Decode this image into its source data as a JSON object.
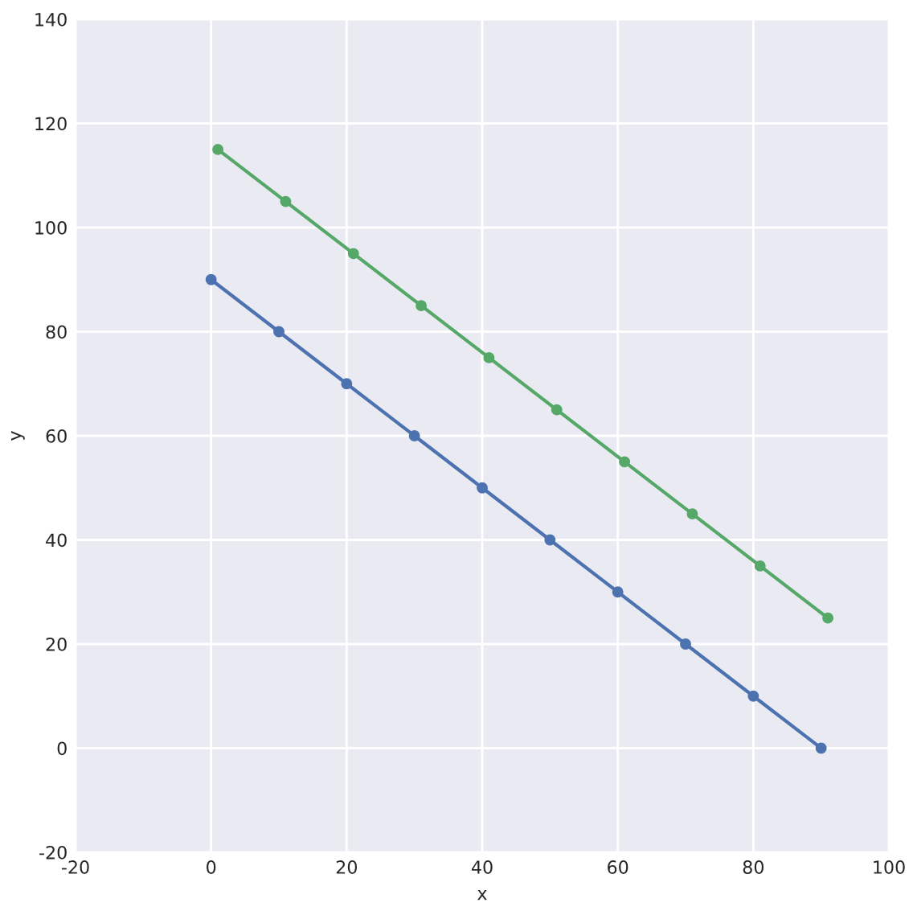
{
  "chart_data": {
    "type": "line",
    "xlabel": "x",
    "ylabel": "y",
    "series": [
      {
        "color": "#4c72b0",
        "x": [
          0,
          10,
          20,
          30,
          40,
          50,
          60,
          70,
          80,
          90
        ],
        "values": [
          90,
          80,
          70,
          60,
          50,
          40,
          30,
          20,
          10,
          0
        ]
      },
      {
        "color": "#55a868",
        "x": [
          1,
          11,
          21,
          31,
          41,
          51,
          61,
          71,
          81,
          91
        ],
        "values": [
          115,
          105,
          95,
          85,
          75,
          65,
          55,
          45,
          35,
          25
        ]
      }
    ],
    "xlim": [
      -20,
      100
    ],
    "xticks": [
      -20,
      0,
      20,
      40,
      60,
      80,
      100
    ],
    "ylim": [
      -20,
      140
    ],
    "yticks": [
      -20,
      0,
      20,
      40,
      60,
      80,
      100,
      120,
      140
    ],
    "grid": true,
    "legend": false,
    "marker": "circle",
    "line_style": "solid"
  }
}
